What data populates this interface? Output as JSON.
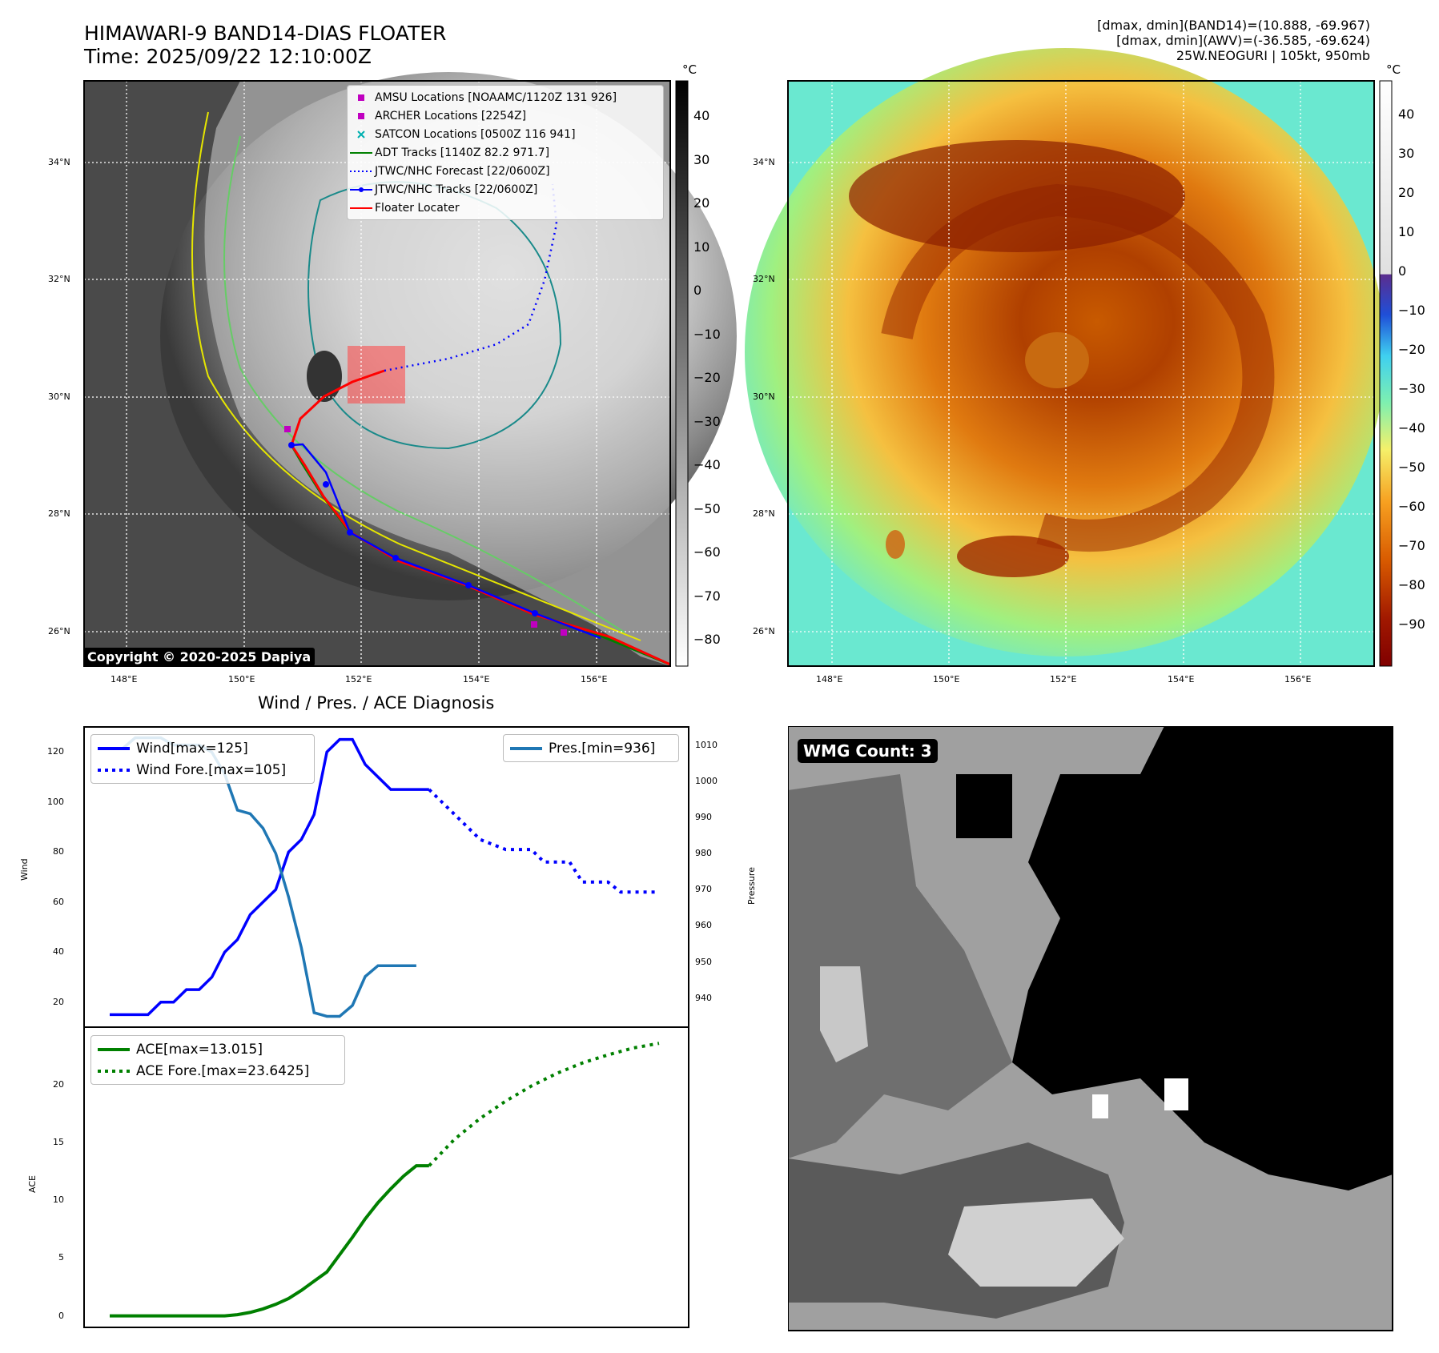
{
  "header": {
    "title_line1": "HIMAWARI-9 BAND14-DIAS FLOATER",
    "title_line2": "Time: 2025/09/22 12:10:00Z",
    "info_line1": "[dmax, dmin](BAND14)=(10.888, -69.967)",
    "info_line2": "[dmax, dmin](AWV)=(-36.585, -69.624)",
    "info_line3": "25W.NEOGURI | 105kt, 950mb"
  },
  "map": {
    "lat_labels": [
      "34°N",
      "32°N",
      "30°N",
      "28°N",
      "26°N"
    ],
    "lon_labels": [
      "148°E",
      "150°E",
      "152°E",
      "154°E",
      "156°E"
    ],
    "copyright": "Copyright © 2020-2025 Dapiya",
    "legend": [
      {
        "label": "AMSU Locations [NOAAMC/1120Z 131 926]",
        "symbol": "square",
        "color": "#c000c0"
      },
      {
        "label": "ARCHER Locations [2254Z]",
        "symbol": "square",
        "color": "#c000c0"
      },
      {
        "label": "SATCON Locations [0500Z 116 941]",
        "symbol": "x",
        "color": "#00b0b0"
      },
      {
        "label": "ADT Tracks [1140Z 82.2 971.7]",
        "symbol": "line",
        "color": "#008000"
      },
      {
        "label": "JTWC/NHC Forecast [22/0600Z]",
        "symbol": "dotted",
        "color": "#0000ff"
      },
      {
        "label": "JTWC/NHC Tracks [22/0600Z]",
        "symbol": "line-dot",
        "color": "#0000ff"
      },
      {
        "label": "Floater Locater",
        "symbol": "line",
        "color": "#ff0000"
      }
    ],
    "bw_colorbar": {
      "unit": "°C",
      "ticks": [
        "40",
        "30",
        "20",
        "10",
        "0",
        "−10",
        "−20",
        "−30",
        "−40",
        "−50",
        "−60",
        "−70",
        "−80"
      ]
    },
    "color_colorbar": {
      "unit": "°C",
      "ticks": [
        "40",
        "30",
        "20",
        "10",
        "0",
        "−10",
        "−20",
        "−30",
        "−40",
        "−50",
        "−60",
        "−70",
        "−80",
        "−90"
      ]
    }
  },
  "diagnosis": {
    "title": "Wind / Pres. / ACE Diagnosis",
    "wind_axis_label": "Wind",
    "pressure_axis_label": "Pressure",
    "ace_axis_label": "ACE",
    "wind_ticks": [
      "120",
      "100",
      "80",
      "60",
      "40",
      "20"
    ],
    "pressure_ticks": [
      "1010",
      "1000",
      "990",
      "980",
      "970",
      "960",
      "950",
      "940"
    ],
    "ace_ticks": [
      "20",
      "15",
      "10",
      "5",
      "0"
    ],
    "legend_wind": "Wind[max=125]",
    "legend_wind_fore": "Wind Fore.[max=105]",
    "legend_pres": "Pres.[min=936]",
    "legend_ace": "ACE[max=13.015]",
    "legend_ace_fore": "ACE Fore.[max=23.6425]"
  },
  "chart_data": [
    {
      "type": "line",
      "title": "Wind / Pres. / ACE Diagnosis",
      "ylabel": "Wind",
      "ylim": [
        10,
        130
      ],
      "x": [
        0,
        1,
        2,
        3,
        4,
        5,
        6,
        7,
        8,
        9,
        10,
        11,
        12,
        13,
        14,
        15,
        16,
        17,
        18,
        19,
        20,
        21,
        22,
        23,
        24,
        25,
        26,
        27,
        28,
        29,
        30,
        31,
        32,
        33,
        34,
        35,
        36,
        37,
        38,
        39,
        40,
        41,
        42,
        43
      ],
      "series": [
        {
          "name": "Wind[max=125]",
          "color": "#0000ff",
          "style": "solid",
          "x": [
            0,
            1,
            2,
            3,
            4,
            5,
            6,
            7,
            8,
            9,
            10,
            11,
            12,
            13,
            14,
            15,
            16,
            17,
            18,
            19,
            20,
            21,
            22,
            23,
            24,
            25
          ],
          "values": [
            15,
            15,
            15,
            15,
            20,
            20,
            25,
            25,
            30,
            40,
            45,
            55,
            60,
            65,
            80,
            85,
            95,
            120,
            125,
            125,
            115,
            110,
            105,
            105,
            105,
            105
          ]
        },
        {
          "name": "Wind Fore.[max=105]",
          "color": "#0000ff",
          "style": "dotted",
          "x": [
            25,
            26,
            27,
            28,
            29,
            30,
            31,
            32,
            33,
            34,
            35,
            36,
            37,
            38,
            39,
            40,
            41,
            42,
            43
          ],
          "values": [
            105,
            100,
            95,
            90,
            85,
            83,
            81,
            81,
            81,
            76,
            76,
            76,
            68,
            68,
            68,
            64,
            64,
            64,
            64
          ]
        },
        {
          "name": "Pres.[min=936]",
          "color": "#1f77b4",
          "style": "solid",
          "axis": "right",
          "ylim_right": [
            932,
            1015
          ],
          "x": [
            0,
            1,
            2,
            3,
            4,
            5,
            6,
            7,
            8,
            9,
            10,
            11,
            12,
            13,
            14,
            15,
            16,
            17,
            18,
            19,
            20,
            21,
            22,
            23,
            24
          ],
          "values": [
            1009,
            1009,
            1012,
            1012,
            1012,
            1010,
            1010,
            1010,
            1008,
            1002,
            992,
            991,
            987,
            980,
            968,
            954,
            936,
            935,
            935,
            938,
            946,
            949,
            949,
            949,
            949
          ]
        }
      ]
    },
    {
      "type": "line",
      "ylabel": "ACE",
      "ylim": [
        -1,
        25
      ],
      "x": [
        0,
        1,
        2,
        3,
        4,
        5,
        6,
        7,
        8,
        9,
        10,
        11,
        12,
        13,
        14,
        15,
        16,
        17,
        18,
        19,
        20,
        21,
        22,
        23,
        24,
        25,
        26,
        27,
        28,
        29,
        30,
        31,
        32,
        33,
        34,
        35,
        36,
        37,
        38,
        39,
        40,
        41,
        42,
        43
      ],
      "series": [
        {
          "name": "ACE[max=13.015]",
          "color": "#008000",
          "style": "solid",
          "x": [
            0,
            3,
            6,
            9,
            10,
            11,
            12,
            13,
            14,
            15,
            16,
            17,
            18,
            19,
            20,
            21,
            22,
            23,
            24,
            25
          ],
          "values": [
            0,
            0,
            0,
            0,
            0.1,
            0.3,
            0.6,
            1,
            1.5,
            2.2,
            3,
            3.8,
            5.3,
            6.8,
            8.4,
            9.8,
            11,
            12.1,
            13,
            13.0
          ]
        },
        {
          "name": "ACE Fore.[max=23.6425]",
          "color": "#008000",
          "style": "dotted",
          "x": [
            25,
            27,
            29,
            31,
            33,
            35,
            37,
            39,
            41,
            43
          ],
          "values": [
            13.0,
            15.3,
            17.1,
            18.6,
            19.9,
            21.0,
            21.9,
            22.6,
            23.2,
            23.6
          ]
        }
      ]
    }
  ],
  "wmg": {
    "badge": "WMG Count: 3"
  }
}
